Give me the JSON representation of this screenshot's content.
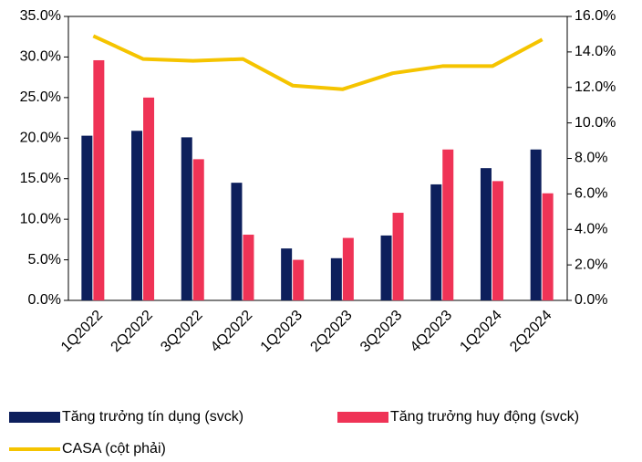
{
  "chart_data": {
    "type": "bar-line",
    "categories": [
      "1Q2022",
      "2Q2022",
      "3Q2022",
      "4Q2022",
      "1Q2023",
      "2Q2023",
      "3Q2023",
      "4Q2023",
      "1Q2024",
      "2Q2024"
    ],
    "series": [
      {
        "name": "Tăng trưởng tín dụng (svck)",
        "color": "#0d1f5c",
        "type": "bar",
        "values": [
          20.3,
          20.9,
          20.1,
          14.5,
          6.4,
          5.2,
          8.0,
          14.3,
          16.3,
          18.6
        ]
      },
      {
        "name": "Tăng trưởng huy động (svck)",
        "color": "#ef3356",
        "type": "bar",
        "values": [
          29.6,
          25.0,
          17.4,
          8.1,
          5.0,
          7.7,
          10.8,
          18.6,
          14.7,
          13.2
        ]
      },
      {
        "name": "CASA (cột phải)",
        "color": "#f5c400",
        "type": "line",
        "axis": "y2",
        "values": [
          14.9,
          13.6,
          13.5,
          13.6,
          12.1,
          11.9,
          12.8,
          13.2,
          13.2,
          14.7
        ]
      }
    ],
    "ylim": [
      0,
      35
    ],
    "yticks": [
      {
        "value": 0,
        "label": "0.0%"
      },
      {
        "value": 5,
        "label": "5.0%"
      },
      {
        "value": 10,
        "label": "10.0%"
      },
      {
        "value": 15,
        "label": "15.0%"
      },
      {
        "value": 20,
        "label": "20.0%"
      },
      {
        "value": 25,
        "label": "25.0%"
      },
      {
        "value": 30,
        "label": "30.0%"
      },
      {
        "value": 35,
        "label": "35.0%"
      }
    ],
    "y2lim": [
      0,
      16
    ],
    "y2ticks": [
      {
        "value": 0,
        "label": "0.0%"
      },
      {
        "value": 2,
        "label": "2.0%"
      },
      {
        "value": 4,
        "label": "4.0%"
      },
      {
        "value": 6,
        "label": "6.0%"
      },
      {
        "value": 8,
        "label": "8.0%"
      },
      {
        "value": 10,
        "label": "10.0%"
      },
      {
        "value": 12,
        "label": "12.0%"
      },
      {
        "value": 14,
        "label": "14.0%"
      },
      {
        "value": 16,
        "label": "16.0%"
      }
    ]
  }
}
